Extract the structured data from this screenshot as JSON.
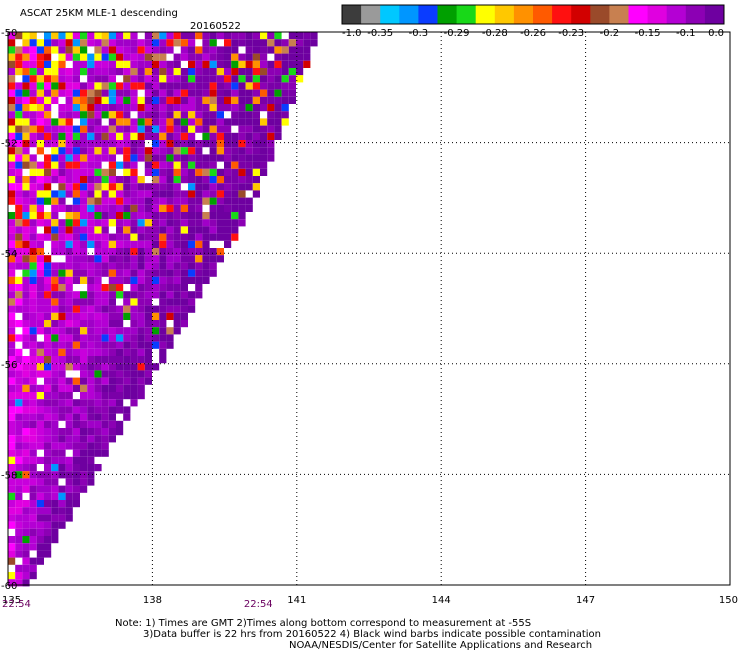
{
  "chart_data": {
    "type": "heatmap",
    "title": "ASCAT 25KM MLE-1 descending",
    "date": "20160522",
    "x_ticks": [
      "135",
      "138",
      "141",
      "144",
      "147",
      "150"
    ],
    "x_tick_values": [
      135,
      138,
      141,
      144,
      147,
      150
    ],
    "y_ticks": [
      "-50",
      "-52",
      "-54",
      "-56",
      "-58",
      "-60"
    ],
    "y_tick_values": [
      -50,
      -52,
      -54,
      -56,
      -58,
      -60
    ],
    "xlim": [
      135,
      150
    ],
    "ylim": [
      -60,
      -50
    ],
    "grid": true,
    "time_labels": [
      {
        "lon": 135,
        "text": "22:54"
      },
      {
        "lon": 139.9,
        "text": "22:54"
      }
    ],
    "colorbar": {
      "labels": [
        "-1.0",
        "-0.35",
        "-0.3",
        "-0.29",
        "-0.28",
        "-0.26",
        "-0.23",
        "-0.2",
        "-0.15",
        "-0.1",
        "0.0"
      ],
      "colors": [
        "#3c3c3c",
        "#9a9a9a",
        "#00c8ff",
        "#0096ff",
        "#0a3cff",
        "#00a000",
        "#18d818",
        "#ffff00",
        "#ffc800",
        "#ff9100",
        "#ff5a00",
        "#ff1010",
        "#d20000",
        "#9a4a2a",
        "#c88050",
        "#ff00ff",
        "#e000e0",
        "#b400d4",
        "#8c00b4",
        "#6e00a0"
      ]
    },
    "swath": {
      "top_lat": -50,
      "top_right_lon": 141.4,
      "mid_lat": -53.2,
      "mid_right_lon": 140.0,
      "bottom_lat": -59.9,
      "bottom_right_lon": 135.45
    }
  },
  "notes": {
    "line1": "Note: 1) Times are GMT 2)Times along bottom correspond to measurement at -55S",
    "line2": "3)Data buffer is 22 hrs from 20160522 4) Black wind barbs indicate possible contamination",
    "line3": "NOAA/NESDIS/Center for Satellite Applications and Research"
  }
}
